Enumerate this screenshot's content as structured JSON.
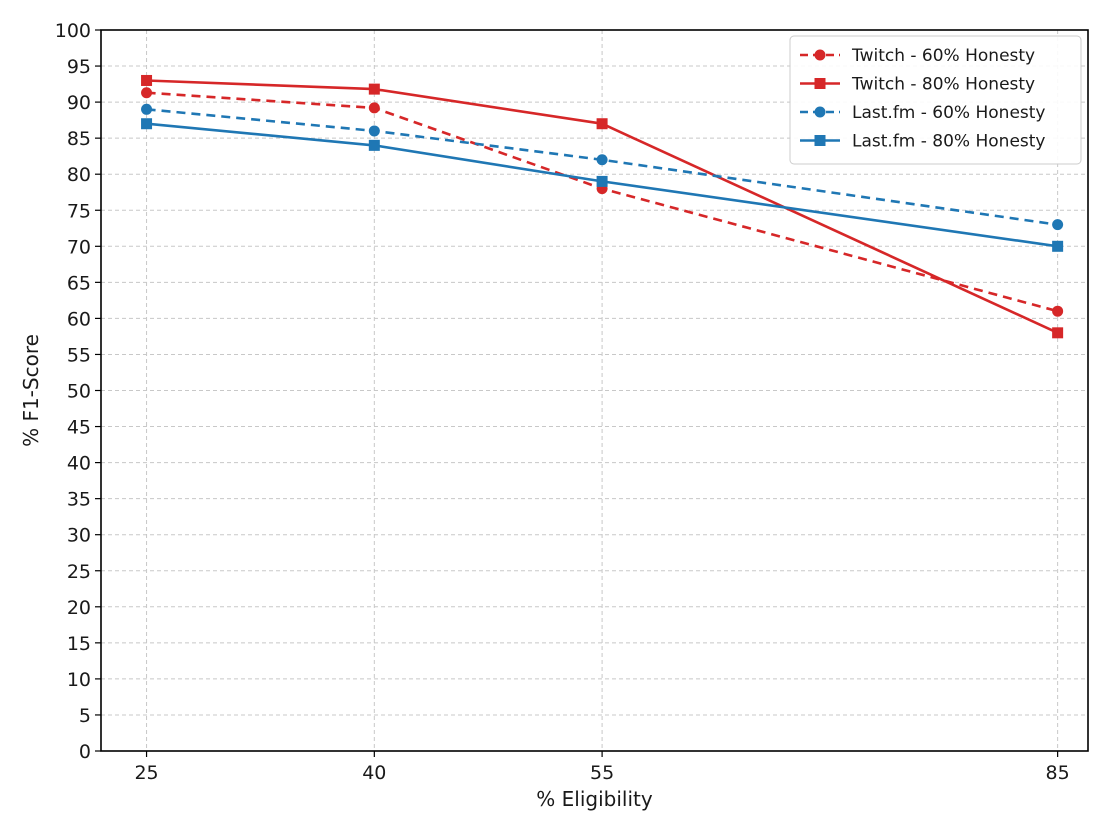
{
  "chart_data": {
    "type": "line",
    "title": "",
    "xlabel": "% Eligibility",
    "ylabel": "% F1-Score",
    "x": [
      25,
      40,
      55,
      85
    ],
    "x_ticks": [
      "25",
      "40",
      "55",
      "85"
    ],
    "xlim": [
      22,
      87
    ],
    "ylim": [
      0,
      100
    ],
    "y_ticks": [
      "0",
      "5",
      "10",
      "15",
      "20",
      "25",
      "30",
      "35",
      "40",
      "45",
      "50",
      "55",
      "60",
      "65",
      "70",
      "75",
      "80",
      "85",
      "90",
      "95",
      "100"
    ],
    "grid": true,
    "legend_position": "top-right",
    "series": [
      {
        "name": "Twitch - 60% Honesty",
        "values": [
          91.3,
          89.2,
          78,
          61
        ],
        "color": "#d62728",
        "line_style": "dashed",
        "marker": "circle"
      },
      {
        "name": "Twitch - 80% Honesty",
        "values": [
          93,
          91.8,
          87,
          58
        ],
        "color": "#d62728",
        "line_style": "solid",
        "marker": "square"
      },
      {
        "name": "Last.fm - 60% Honesty",
        "values": [
          89,
          86,
          82,
          73
        ],
        "color": "#1f77b4",
        "line_style": "dashed",
        "marker": "circle"
      },
      {
        "name": "Last.fm - 80% Honesty",
        "values": [
          87,
          84,
          79,
          70
        ],
        "color": "#1f77b4",
        "line_style": "solid",
        "marker": "square"
      }
    ]
  }
}
